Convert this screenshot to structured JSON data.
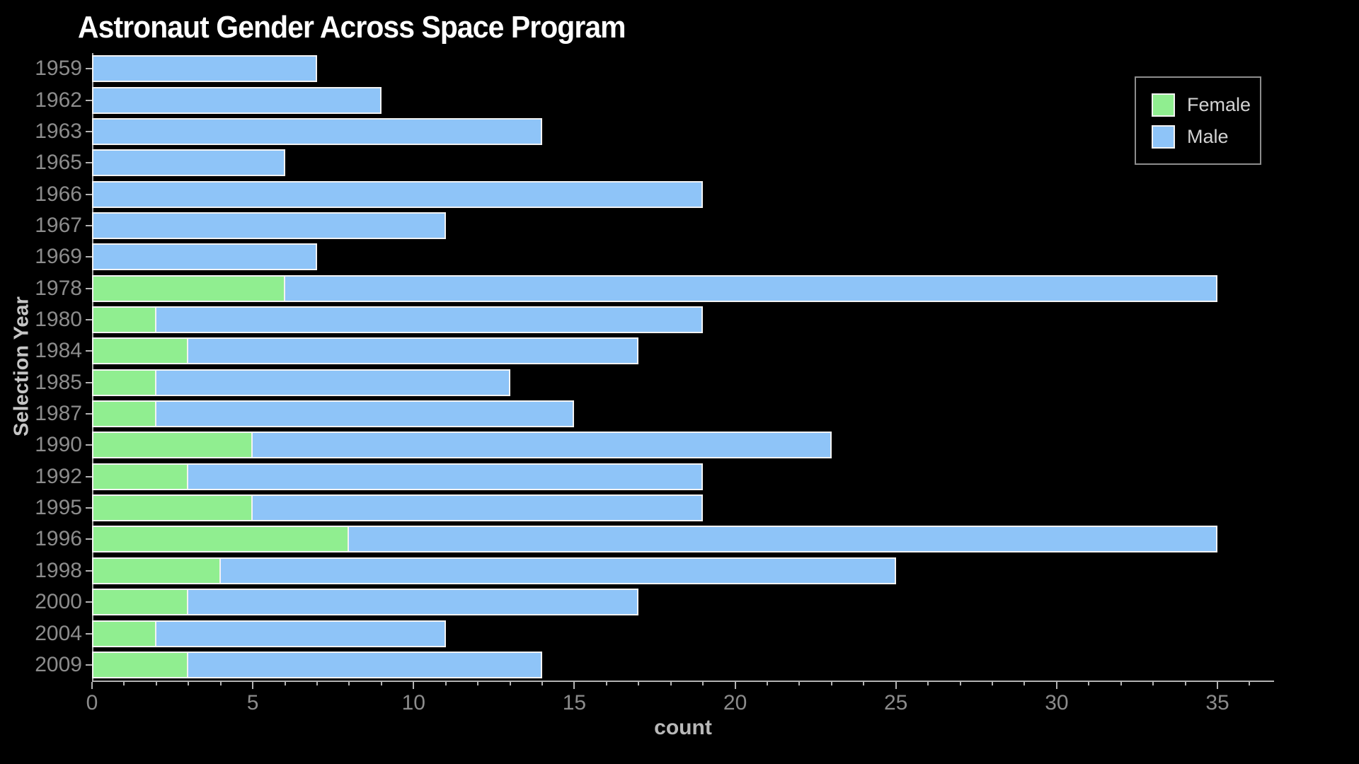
{
  "title": "Astronaut Gender Across Space Program",
  "colors": {
    "background": "#000000",
    "female": "#90ee90",
    "male": "#8ec4f8",
    "bar_edge": "#f2f2f2",
    "axis": "#b3b3b3",
    "tick_label": "#8c8c8c",
    "axis_label": "#c6c6c6",
    "title": "#ffffff",
    "legend_border": "#8d8d8d",
    "legend_text": "#d2d2d2"
  },
  "legend": {
    "female_label": "Female",
    "male_label": "Male"
  },
  "chart_data": {
    "type": "bar",
    "orientation": "horizontal",
    "stacked": true,
    "title": "Astronaut Gender Across Space Program",
    "xlabel": "count",
    "ylabel": "Selection Year",
    "categories": [
      "1959",
      "1962",
      "1963",
      "1965",
      "1966",
      "1967",
      "1969",
      "1978",
      "1980",
      "1984",
      "1985",
      "1987",
      "1990",
      "1992",
      "1995",
      "1996",
      "1998",
      "2000",
      "2004",
      "2009"
    ],
    "series": [
      {
        "name": "Female",
        "color": "#90ee90",
        "values": [
          0,
          0,
          0,
          0,
          0,
          0,
          0,
          6,
          2,
          3,
          2,
          2,
          5,
          3,
          5,
          8,
          4,
          3,
          2,
          3
        ]
      },
      {
        "name": "Male",
        "color": "#8ec4f8",
        "values": [
          7,
          9,
          14,
          6,
          19,
          11,
          7,
          29,
          17,
          14,
          11,
          13,
          18,
          16,
          14,
          27,
          21,
          14,
          9,
          11
        ]
      }
    ],
    "totals": [
      7,
      9,
      14,
      6,
      19,
      11,
      7,
      35,
      19,
      17,
      13,
      15,
      23,
      19,
      19,
      35,
      25,
      17,
      11,
      14
    ],
    "xlim": [
      0,
      36.75
    ],
    "x_major_ticks": [
      0,
      5,
      10,
      15,
      20,
      25,
      30,
      35
    ],
    "x_minor_tick_step": 1,
    "grid": false,
    "legend_position": "upper right"
  }
}
